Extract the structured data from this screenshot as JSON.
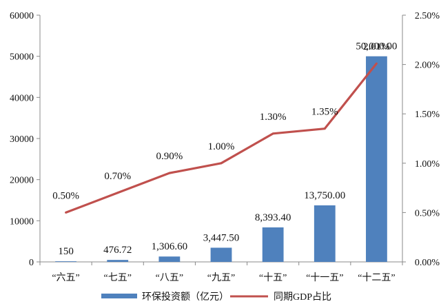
{
  "chart_data": {
    "type": "bar",
    "categories": [
      "“六五”",
      "“七五”",
      "“八五”",
      "“九五”",
      "“十五”",
      "“十一五”",
      "“十二五”"
    ],
    "series": [
      {
        "name": "环保投资额（亿元）",
        "type": "bar",
        "axis": "left",
        "color": "#4f81bd",
        "values": [
          150,
          476.72,
          1306.6,
          3447.5,
          8393.4,
          13750,
          50000
        ],
        "labels": [
          "150",
          "476.72",
          "1,306.60",
          "3,447.50",
          "8,393.40",
          "13,750.00",
          "50,000.00"
        ]
      },
      {
        "name": "同期GDP占比",
        "type": "line",
        "axis": "right",
        "color": "#c0504d",
        "values": [
          0.5,
          0.7,
          0.9,
          1.0,
          1.3,
          1.35,
          2.01
        ],
        "labels": [
          "0.50%",
          "0.70%",
          "0.90%",
          "1.00%",
          "1.30%",
          "1.35%",
          "2.01%"
        ]
      }
    ],
    "left_axis": {
      "min": 0,
      "max": 60000,
      "ticks": [
        "0",
        "10000",
        "20000",
        "30000",
        "40000",
        "50000",
        "60000"
      ]
    },
    "right_axis": {
      "min": 0,
      "max": 2.5,
      "ticks": [
        "0.00%",
        "0.50%",
        "1.00%",
        "1.50%",
        "2.00%",
        "2.50%"
      ]
    },
    "grid": false,
    "legend_position": "bottom"
  }
}
